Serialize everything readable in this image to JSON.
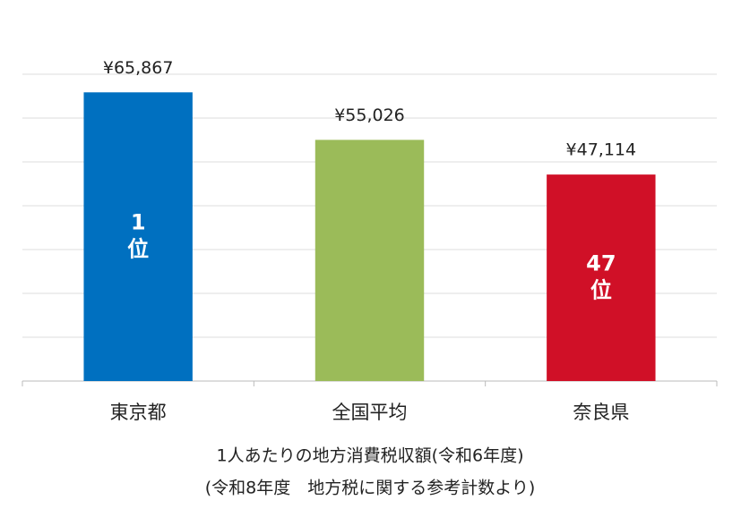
{
  "chart_data": {
    "type": "bar",
    "categories": [
      "東京都",
      "全国平均",
      "奈良県"
    ],
    "values": [
      65867,
      55026,
      47114
    ],
    "value_labels": [
      "¥65,867",
      "¥55,026",
      "¥47,114"
    ],
    "colors": [
      "#0070c0",
      "#9bbb59",
      "#d01027"
    ],
    "bar_labels": [
      [
        "1",
        "位"
      ],
      null,
      [
        "47",
        "位"
      ]
    ],
    "ylim": [
      0,
      70000
    ],
    "yticks": [
      0,
      10000,
      20000,
      30000,
      40000,
      50000,
      60000,
      70000
    ],
    "grid": true,
    "captions": [
      "1人あたりの地方消費税収額(令和6年度)",
      "(令和8年度　地方税に関する参考計数より)"
    ]
  }
}
